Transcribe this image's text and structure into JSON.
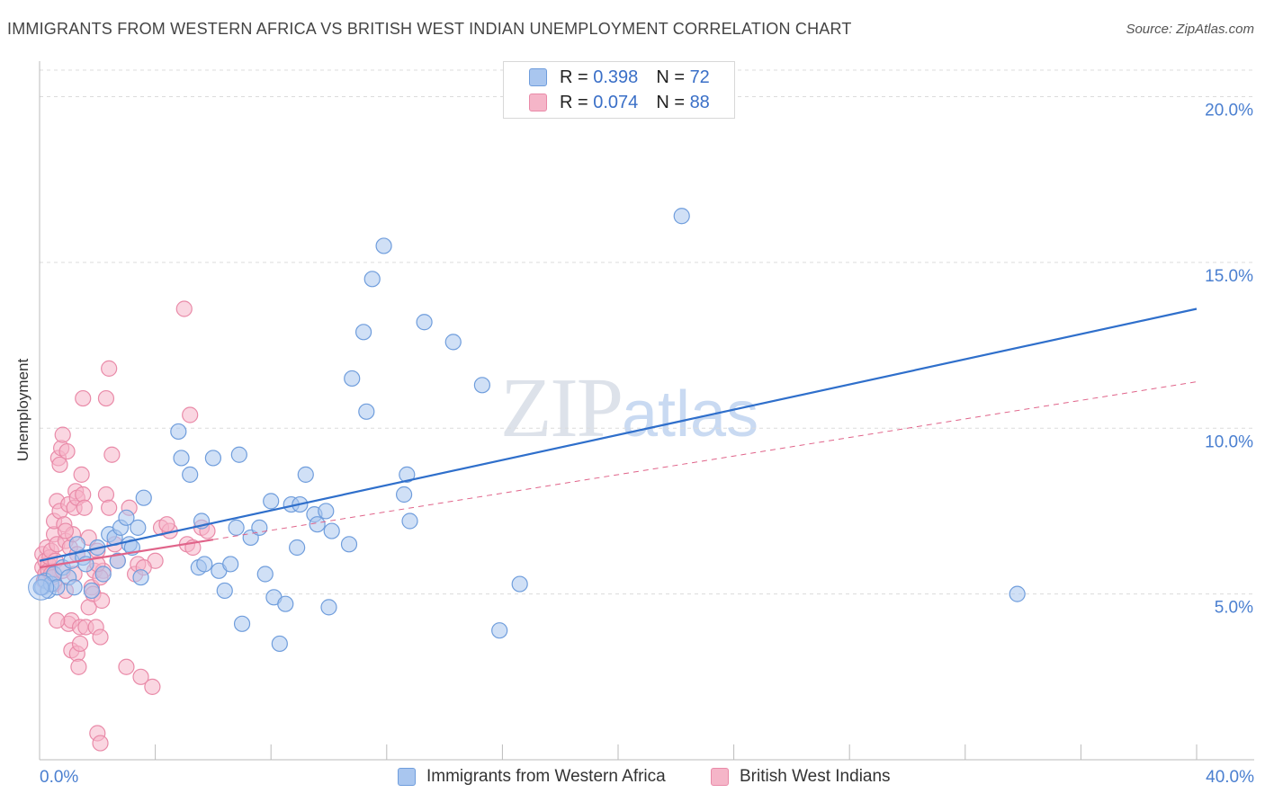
{
  "header": {
    "title": "IMMIGRANTS FROM WESTERN AFRICA VS BRITISH WEST INDIAN UNEMPLOYMENT CORRELATION CHART",
    "source": "Source: ZipAtlas.com"
  },
  "watermark": {
    "zip": "ZIP",
    "atlas": "atlas"
  },
  "legend": {
    "rows": [
      {
        "r_label": "R = ",
        "r_value": "0.398",
        "n_label": "N = ",
        "n_value": "72"
      },
      {
        "r_label": "R = ",
        "r_value": "0.074",
        "n_label": "N = ",
        "n_value": "88"
      }
    ]
  },
  "bottom_legend": {
    "series1": "Immigrants from Western Africa",
    "series2": "British West Indians"
  },
  "colors": {
    "blue_fill": "#a9c6ef",
    "blue_stroke": "#6f9ddc",
    "blue_line": "#2f6fcb",
    "pink_fill": "#f5b5c8",
    "pink_stroke": "#e98aa8",
    "pink_line": "#e0648a",
    "grid": "#dcdcdc",
    "axis_text": "#4a7fd0"
  },
  "chart_data": {
    "type": "scatter",
    "title": "IMMIGRANTS FROM WESTERN AFRICA VS BRITISH WEST INDIAN UNEMPLOYMENT CORRELATION CHART",
    "xlabel": "",
    "ylabel": "Unemployment",
    "xlim": [
      0,
      40
    ],
    "ylim": [
      0,
      20.8
    ],
    "x_tick_labels": [
      "0.0%",
      "40.0%"
    ],
    "y_ticks": [
      5,
      10,
      15,
      20
    ],
    "y_tick_labels": [
      "5.0%",
      "10.0%",
      "15.0%",
      "20.0%"
    ],
    "grid": true,
    "series": [
      {
        "name": "Immigrants from Western Africa",
        "r": 0.398,
        "n": 72,
        "trend": {
          "x": [
            0,
            40
          ],
          "y": [
            6.0,
            13.6
          ],
          "style": "solid"
        },
        "points": [
          [
            0.1,
            5.2
          ],
          [
            0.2,
            5.4
          ],
          [
            0.3,
            5.1
          ],
          [
            0.4,
            5.3
          ],
          [
            0.5,
            5.6
          ],
          [
            0.6,
            5.2
          ],
          [
            0.8,
            5.8
          ],
          [
            1.0,
            5.5
          ],
          [
            1.1,
            6.0
          ],
          [
            1.2,
            5.2
          ],
          [
            1.3,
            6.5
          ],
          [
            1.5,
            6.1
          ],
          [
            1.6,
            5.9
          ],
          [
            1.8,
            5.1
          ],
          [
            2.0,
            6.4
          ],
          [
            2.2,
            5.6
          ],
          [
            2.4,
            6.8
          ],
          [
            2.6,
            6.7
          ],
          [
            2.7,
            6.0
          ],
          [
            2.8,
            7.0
          ],
          [
            3.0,
            7.3
          ],
          [
            3.1,
            6.5
          ],
          [
            3.2,
            6.4
          ],
          [
            3.4,
            7.0
          ],
          [
            3.5,
            5.5
          ],
          [
            3.6,
            7.9
          ],
          [
            4.8,
            9.9
          ],
          [
            4.9,
            9.1
          ],
          [
            5.2,
            8.6
          ],
          [
            5.5,
            5.8
          ],
          [
            5.7,
            5.9
          ],
          [
            5.6,
            7.2
          ],
          [
            6.0,
            9.1
          ],
          [
            6.2,
            5.7
          ],
          [
            6.4,
            5.1
          ],
          [
            6.6,
            5.9
          ],
          [
            6.8,
            7.0
          ],
          [
            6.9,
            9.2
          ],
          [
            7.0,
            4.1
          ],
          [
            7.3,
            6.7
          ],
          [
            7.6,
            7.0
          ],
          [
            7.8,
            5.6
          ],
          [
            8.0,
            7.8
          ],
          [
            8.1,
            4.9
          ],
          [
            8.3,
            3.5
          ],
          [
            8.5,
            4.7
          ],
          [
            8.7,
            7.7
          ],
          [
            8.9,
            6.4
          ],
          [
            9.0,
            7.7
          ],
          [
            9.2,
            8.6
          ],
          [
            9.5,
            7.4
          ],
          [
            9.6,
            7.1
          ],
          [
            9.9,
            7.5
          ],
          [
            10.0,
            4.6
          ],
          [
            10.1,
            6.9
          ],
          [
            10.7,
            6.5
          ],
          [
            10.8,
            11.5
          ],
          [
            11.2,
            12.9
          ],
          [
            11.3,
            10.5
          ],
          [
            11.5,
            14.5
          ],
          [
            11.9,
            15.5
          ],
          [
            12.6,
            8.0
          ],
          [
            12.7,
            8.6
          ],
          [
            12.8,
            7.2
          ],
          [
            13.3,
            13.2
          ],
          [
            14.3,
            12.6
          ],
          [
            15.3,
            11.3
          ],
          [
            15.9,
            3.9
          ],
          [
            16.6,
            5.3
          ],
          [
            22.2,
            16.4
          ],
          [
            33.8,
            5.0
          ],
          [
            0.05,
            5.2
          ]
        ]
      },
      {
        "name": "British West Indians",
        "r": 0.074,
        "n": 88,
        "trend": {
          "x": [
            0,
            40
          ],
          "y": [
            5.8,
            11.4
          ],
          "style": "dashed",
          "solid_until": 6.0
        },
        "points": [
          [
            0.1,
            5.8
          ],
          [
            0.1,
            6.2
          ],
          [
            0.15,
            5.4
          ],
          [
            0.2,
            6.0
          ],
          [
            0.2,
            5.6
          ],
          [
            0.25,
            6.4
          ],
          [
            0.3,
            5.9
          ],
          [
            0.3,
            5.7
          ],
          [
            0.35,
            6.1
          ],
          [
            0.4,
            5.6
          ],
          [
            0.4,
            6.3
          ],
          [
            0.45,
            5.5
          ],
          [
            0.5,
            6.8
          ],
          [
            0.5,
            7.2
          ],
          [
            0.5,
            5.3
          ],
          [
            0.55,
            6.0
          ],
          [
            0.6,
            7.8
          ],
          [
            0.6,
            6.5
          ],
          [
            0.65,
            9.1
          ],
          [
            0.7,
            8.9
          ],
          [
            0.7,
            7.5
          ],
          [
            0.75,
            9.4
          ],
          [
            0.8,
            9.8
          ],
          [
            0.8,
            5.7
          ],
          [
            0.85,
            7.1
          ],
          [
            0.9,
            5.1
          ],
          [
            0.9,
            6.6
          ],
          [
            0.95,
            9.3
          ],
          [
            1.0,
            7.7
          ],
          [
            1.0,
            4.1
          ],
          [
            1.05,
            6.4
          ],
          [
            1.1,
            3.3
          ],
          [
            1.1,
            4.2
          ],
          [
            1.15,
            6.8
          ],
          [
            1.2,
            7.6
          ],
          [
            1.2,
            5.6
          ],
          [
            1.25,
            8.1
          ],
          [
            1.3,
            7.9
          ],
          [
            1.3,
            3.2
          ],
          [
            1.35,
            2.8
          ],
          [
            1.4,
            4.0
          ],
          [
            1.4,
            3.5
          ],
          [
            1.45,
            8.6
          ],
          [
            1.5,
            10.9
          ],
          [
            1.5,
            8.0
          ],
          [
            1.55,
            7.6
          ],
          [
            1.6,
            4.0
          ],
          [
            1.7,
            4.6
          ],
          [
            1.8,
            5.2
          ],
          [
            1.85,
            5.0
          ],
          [
            1.9,
            5.7
          ],
          [
            1.95,
            4.0
          ],
          [
            2.0,
            6.3
          ],
          [
            2.0,
            0.8
          ],
          [
            2.1,
            0.5
          ],
          [
            2.1,
            3.7
          ],
          [
            2.15,
            4.8
          ],
          [
            2.2,
            5.7
          ],
          [
            2.3,
            10.9
          ],
          [
            2.3,
            8.0
          ],
          [
            2.4,
            11.8
          ],
          [
            2.4,
            7.6
          ],
          [
            2.5,
            9.2
          ],
          [
            2.6,
            6.5
          ],
          [
            2.7,
            6.0
          ],
          [
            3.0,
            2.8
          ],
          [
            3.1,
            7.6
          ],
          [
            3.3,
            5.6
          ],
          [
            3.4,
            5.9
          ],
          [
            3.5,
            2.5
          ],
          [
            3.9,
            2.2
          ],
          [
            4.0,
            6.0
          ],
          [
            4.2,
            7.0
          ],
          [
            4.5,
            6.9
          ],
          [
            5.0,
            13.6
          ],
          [
            5.1,
            6.5
          ],
          [
            5.2,
            10.4
          ],
          [
            5.3,
            6.4
          ],
          [
            5.6,
            7.0
          ],
          [
            5.8,
            6.9
          ],
          [
            2.1,
            5.5
          ],
          [
            1.7,
            6.7
          ],
          [
            1.3,
            6.2
          ],
          [
            0.9,
            6.9
          ],
          [
            0.6,
            4.2
          ],
          [
            2.0,
            5.9
          ],
          [
            3.6,
            5.8
          ],
          [
            4.4,
            7.1
          ]
        ]
      }
    ]
  }
}
